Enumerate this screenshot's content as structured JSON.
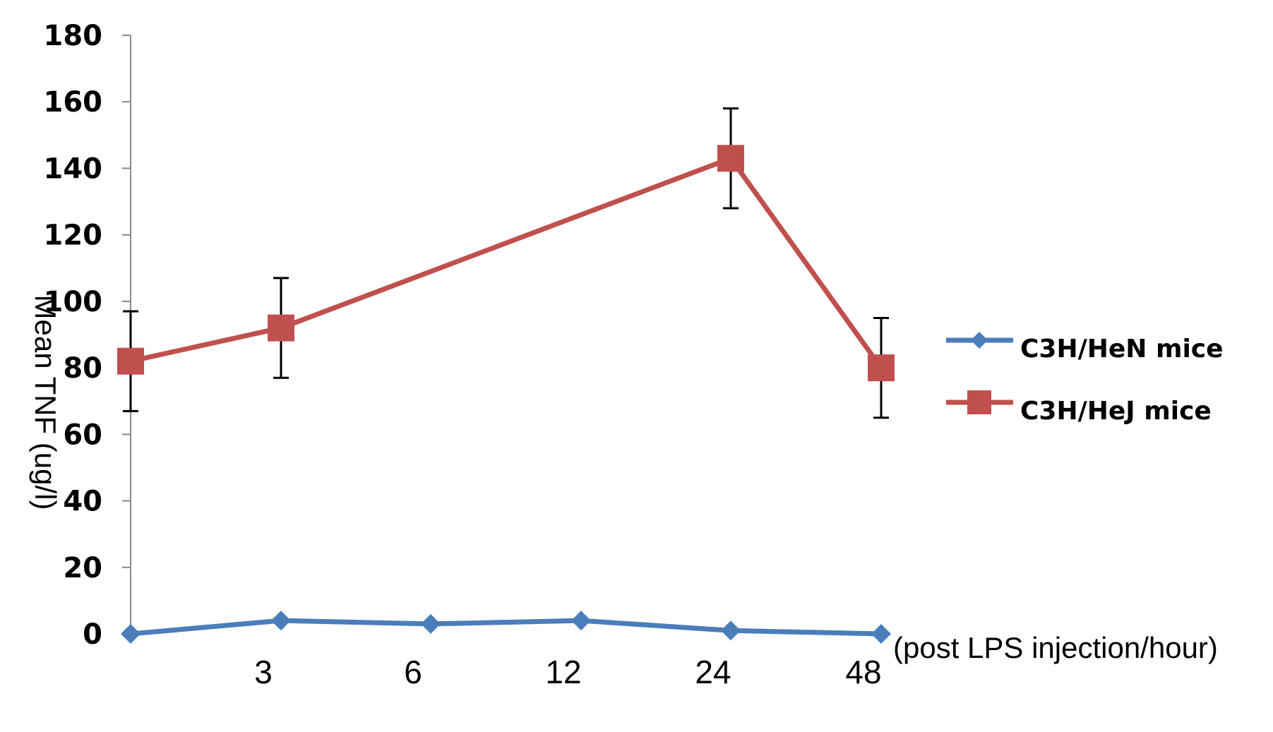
{
  "chart_data": {
    "type": "line",
    "title": "",
    "ylabel": "Mean  TNF  (ug/l)",
    "xlabel": "(post LPS injection/hour)",
    "ylim": [
      0,
      180
    ],
    "yticks": [
      0,
      20,
      40,
      60,
      80,
      100,
      120,
      140,
      160,
      180
    ],
    "categories": [
      "",
      "3",
      "6",
      "12",
      "24",
      "48"
    ],
    "grid": false,
    "legend_position": "right",
    "series": [
      {
        "name": "C3H/HeN mice",
        "color": "#4a7ebb",
        "marker": "diamond",
        "values": [
          0,
          4,
          3,
          4,
          1,
          0
        ]
      },
      {
        "name": "C3H/HeJ mice",
        "color": "#c0504d",
        "marker": "square",
        "values": [
          82,
          92,
          null,
          null,
          143,
          80
        ],
        "error": [
          15,
          15,
          null,
          null,
          15,
          15
        ]
      }
    ]
  }
}
